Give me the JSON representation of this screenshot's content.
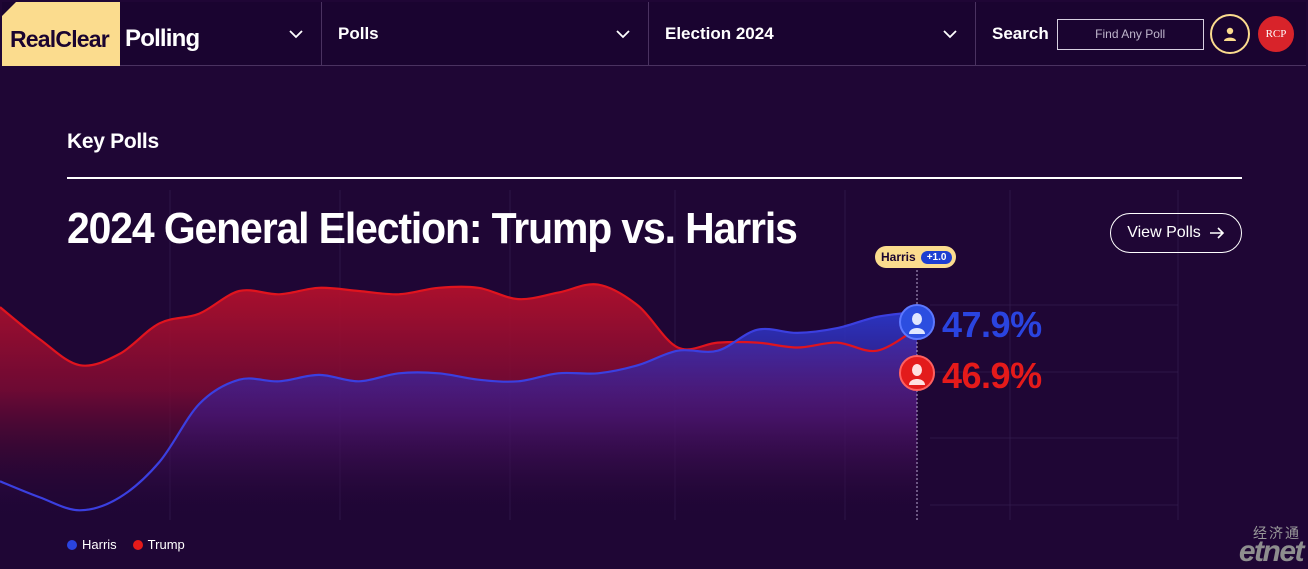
{
  "header": {
    "logo_part1": "RealClear",
    "logo_part2": "Polling",
    "nav": [
      {
        "label": "",
        "icon": "chevron-down-icon"
      },
      {
        "label": "Polls",
        "icon": "chevron-down-icon"
      },
      {
        "label": "Election 2024",
        "icon": "chevron-down-icon"
      }
    ],
    "search_label": "Search",
    "search_placeholder": "Find Any Poll",
    "user_icon": "user-icon",
    "badge_text": "RCP"
  },
  "section_label": "Key Polls",
  "title": "2024 General Election: Trump vs. Harris",
  "view_polls_label": "View Polls",
  "leader": {
    "name": "Harris",
    "margin": "+1.0"
  },
  "colors": {
    "harris": "#2a44e0",
    "trump": "#e51a1a",
    "accent": "#fbdc8e",
    "background": "#1f0635"
  },
  "chart_data": {
    "type": "line",
    "series": [
      {
        "name": "Harris",
        "label": "47.9%",
        "values": [
          37.4,
          36.4,
          35.6,
          36.4,
          38.6,
          42.2,
          43.7,
          43.6,
          44.0,
          43.6,
          44.1,
          44.1,
          43.7,
          43.6,
          44.1,
          44.1,
          44.6,
          45.5,
          45.5,
          46.8,
          46.6,
          46.9,
          47.6,
          47.9
        ],
        "end_label": "47.9%"
      },
      {
        "name": "Trump",
        "label": "46.9%",
        "values": [
          48.2,
          46.2,
          44.6,
          45.3,
          47.2,
          47.8,
          49.2,
          49.0,
          49.4,
          49.2,
          49.0,
          49.4,
          49.4,
          48.7,
          49.1,
          49.6,
          48.3,
          45.7,
          46.0,
          46.0,
          45.7,
          46.0,
          45.5,
          46.9
        ],
        "end_label": "46.9%"
      }
    ],
    "x_points": 24,
    "ylim": [
      35.0,
      51.0
    ],
    "grid": true,
    "legend": "bottom-left"
  },
  "legend": [
    {
      "name": "Harris",
      "color": "#2a44e0"
    },
    {
      "name": "Trump",
      "color": "#e51a1a"
    }
  ],
  "watermark": {
    "text_cn": "经济通",
    "text_en": "etnet"
  }
}
